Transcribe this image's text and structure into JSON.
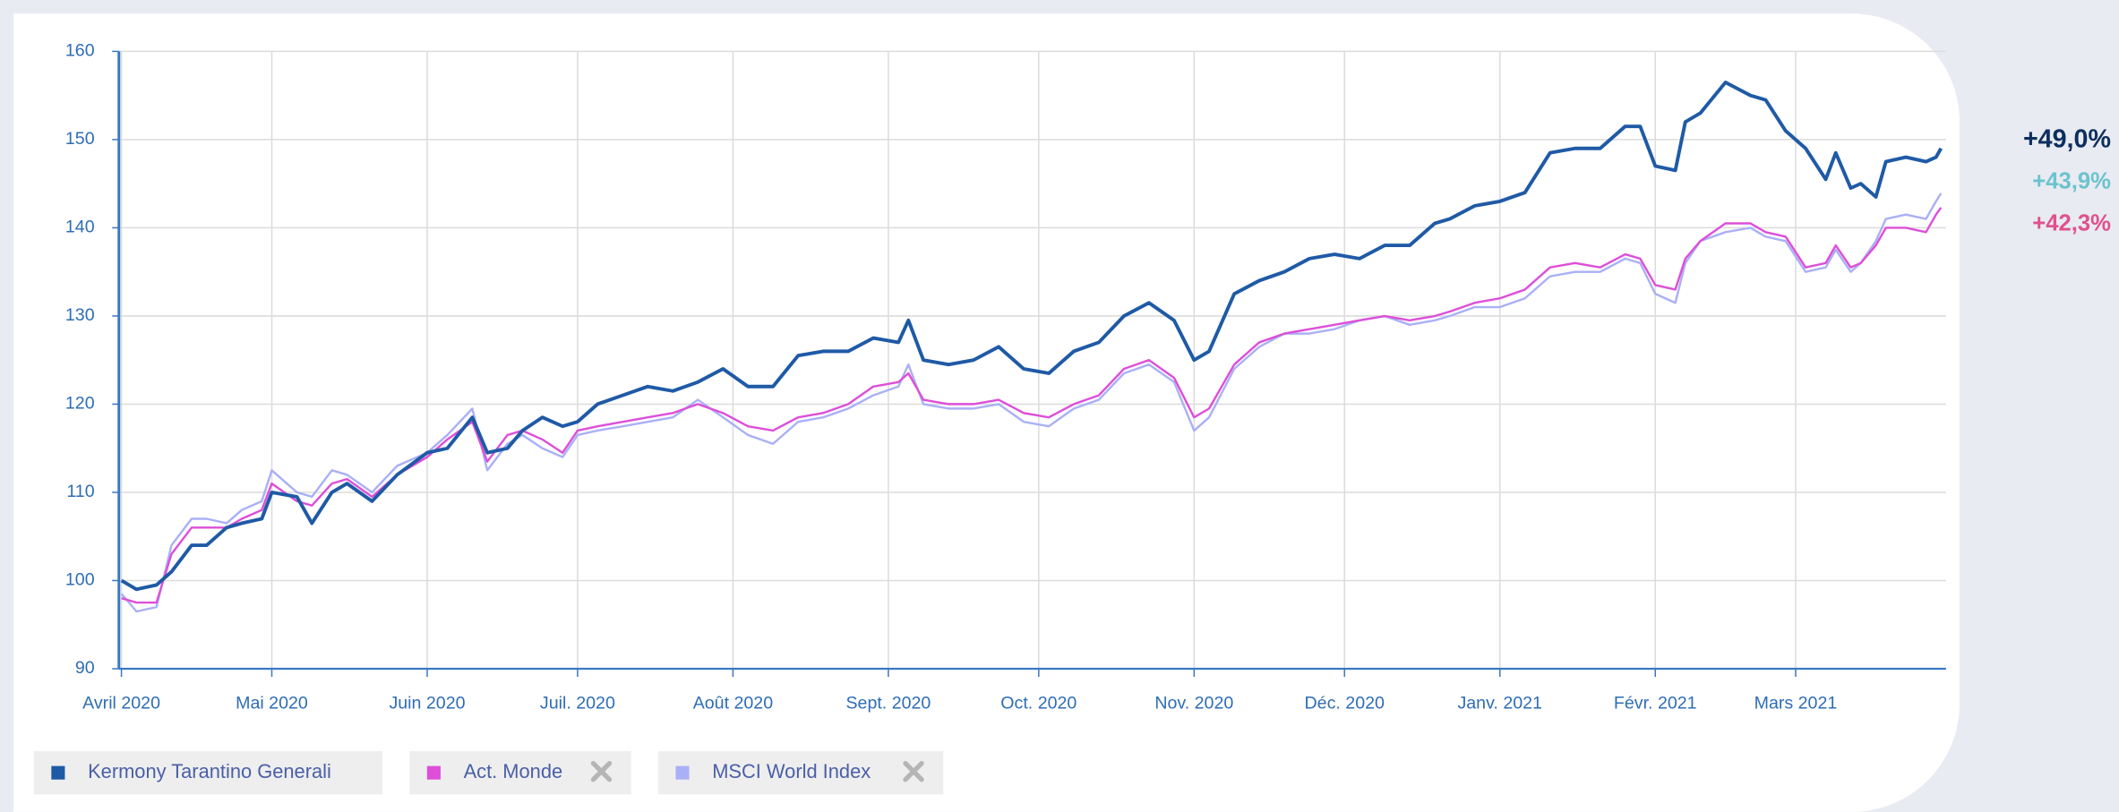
{
  "chart_data": {
    "type": "line",
    "x": [
      0,
      3,
      7,
      10,
      14,
      17,
      21,
      24,
      28,
      30,
      35,
      38,
      42,
      45,
      50,
      55,
      61,
      65,
      70,
      73,
      77,
      80,
      84,
      88,
      91,
      95,
      100,
      105,
      110,
      115,
      120,
      125,
      130,
      135,
      140,
      145,
      150,
      155,
      157,
      160,
      165,
      170,
      175,
      180,
      185,
      190,
      195,
      200,
      205,
      210,
      214,
      217,
      222,
      227,
      232,
      237,
      242,
      247,
      252,
      257,
      262,
      265,
      270,
      275,
      280,
      285,
      290,
      295,
      300,
      303,
      306,
      310,
      312,
      315,
      320,
      325,
      328,
      332,
      336,
      340,
      342,
      345,
      347,
      350,
      352,
      356,
      360,
      362,
      363
    ],
    "series": [
      {
        "name": "Kermony Tarantino Generali",
        "color": "#1f5aa6",
        "values": [
          100,
          99,
          99.5,
          101,
          104,
          104,
          106,
          106.5,
          107,
          110,
          109.5,
          106.5,
          110,
          111,
          109,
          112,
          114.5,
          115,
          118.5,
          114.5,
          115,
          117,
          118.5,
          117.5,
          118,
          120,
          121,
          122,
          121.5,
          122.5,
          124,
          122,
          122,
          125.5,
          126,
          126,
          127.5,
          127,
          129.5,
          125,
          124.5,
          125,
          126.5,
          124,
          123.5,
          126,
          127,
          130,
          131.5,
          129.5,
          125,
          126,
          132.5,
          134,
          135,
          136.5,
          137,
          136.5,
          138,
          138,
          140.5,
          141,
          142.5,
          143,
          144,
          148.5,
          149,
          149,
          151.5,
          151.5,
          147,
          146.5,
          152,
          153,
          156.5,
          155,
          154.5,
          151,
          149,
          145.5,
          148.5,
          144.5,
          145,
          143.5,
          147.5,
          148,
          147.5,
          148,
          149
        ]
      },
      {
        "name": "Act. Monde",
        "color": "#dd4fd8",
        "values": [
          98,
          97.5,
          97.5,
          103,
          106,
          106,
          106,
          107,
          108,
          111,
          109,
          108.5,
          111,
          111.5,
          109.5,
          112,
          114,
          116,
          118,
          113.5,
          116.5,
          117,
          116,
          114.5,
          117,
          117.5,
          118,
          118.5,
          119,
          120,
          119,
          117.5,
          117,
          118.5,
          119,
          120,
          122,
          122.5,
          123.5,
          120.5,
          120,
          120,
          120.5,
          119,
          118.5,
          120,
          121,
          124,
          125,
          123,
          118.5,
          119.5,
          124.5,
          127,
          128,
          128.5,
          129,
          129.5,
          130,
          129.5,
          130,
          130.5,
          131.5,
          132,
          133,
          135.5,
          136,
          135.5,
          137,
          136.5,
          133.5,
          133,
          136.5,
          138.5,
          140.5,
          140.5,
          139.5,
          139,
          135.5,
          136,
          138,
          135.5,
          136,
          138,
          140,
          140,
          139.5,
          141.5,
          142.3
        ]
      },
      {
        "name": "MSCI World Index",
        "color": "#aab0f5",
        "values": [
          98.5,
          96.5,
          97,
          104,
          107,
          107,
          106.5,
          108,
          109,
          112.5,
          110,
          109.5,
          112.5,
          112,
          110,
          113,
          114.5,
          116.5,
          119.5,
          112.5,
          115.5,
          116.5,
          115,
          114,
          116.5,
          117,
          117.5,
          118,
          118.5,
          120.5,
          118.5,
          116.5,
          115.5,
          118,
          118.5,
          119.5,
          121,
          122,
          124.5,
          120,
          119.5,
          119.5,
          120,
          118,
          117.5,
          119.5,
          120.5,
          123.5,
          124.5,
          122.5,
          117,
          118.5,
          124,
          126.5,
          128,
          128,
          128.5,
          129.5,
          130,
          129,
          129.5,
          130,
          131,
          131,
          132,
          134.5,
          135,
          135,
          136.5,
          136,
          132.5,
          131.5,
          136,
          138.5,
          139.5,
          140,
          139,
          138.5,
          135,
          135.5,
          137.5,
          135,
          136,
          138.5,
          141,
          141.5,
          141,
          143,
          143.9
        ]
      }
    ],
    "xlim": [
      -0.5,
      364
    ],
    "xticks": [
      {
        "value": 0,
        "label": "Avril 2020"
      },
      {
        "value": 30,
        "label": "Mai 2020"
      },
      {
        "value": 61,
        "label": "Juin 2020"
      },
      {
        "value": 91,
        "label": "Juil. 2020"
      },
      {
        "value": 122,
        "label": "Août 2020"
      },
      {
        "value": 153,
        "label": "Sept. 2020"
      },
      {
        "value": 183,
        "label": "Oct. 2020"
      },
      {
        "value": 214,
        "label": "Nov. 2020"
      },
      {
        "value": 244,
        "label": "Déc. 2020"
      },
      {
        "value": 275,
        "label": "Janv. 2021"
      },
      {
        "value": 306,
        "label": "Févr. 2021"
      },
      {
        "value": 334,
        "label": "Mars 2021"
      }
    ],
    "ylim": [
      90,
      160
    ],
    "yticks": [
      90,
      100,
      110,
      120,
      130,
      140,
      150,
      160
    ],
    "grid": true,
    "annotations": [
      {
        "text": "+49,0%",
        "color": "#0d2f5e"
      },
      {
        "text": "+43,9%",
        "color": "#6cc3cf"
      },
      {
        "text": "+42,3%",
        "color": "#e0508f"
      }
    ]
  }
}
